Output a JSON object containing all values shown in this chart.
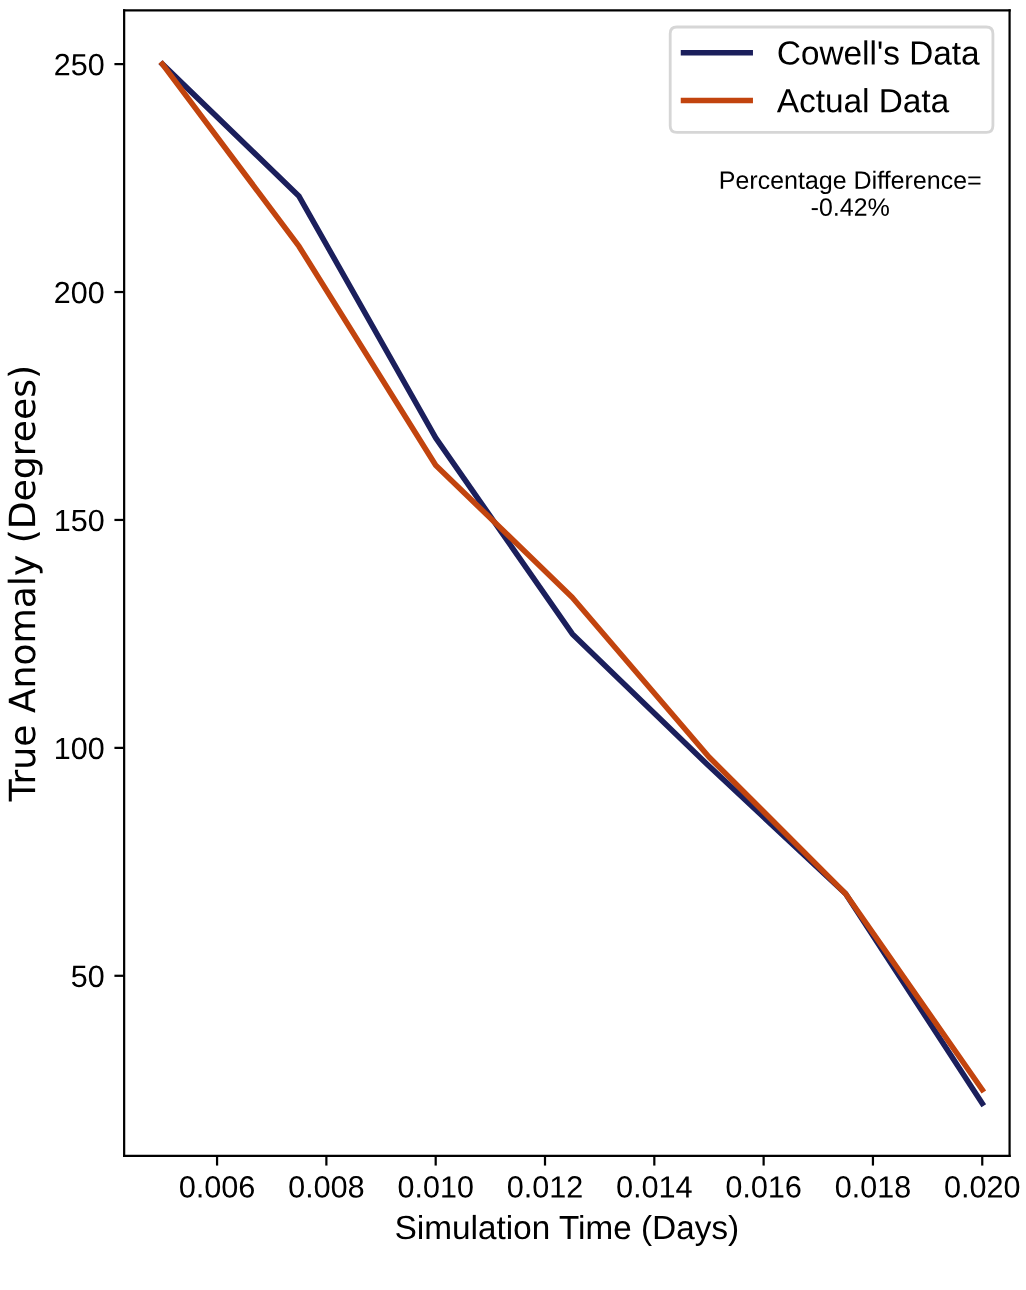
{
  "chart_data": {
    "type": "line",
    "xlabel": "Simulation Time (Days)",
    "ylabel": "True Anomaly (Degrees)",
    "x": [
      0.005,
      0.0075,
      0.01,
      0.0125,
      0.015,
      0.0175,
      0.02
    ],
    "series": [
      {
        "name": "Cowell's Data",
        "color": "#1b1f5c",
        "values": [
          250,
          221,
          168,
          125,
          96,
          68,
          22
        ]
      },
      {
        "name": "Actual Data",
        "color": "#c2440e",
        "values": [
          250,
          210,
          162,
          133,
          98,
          68,
          25
        ]
      }
    ],
    "xlim": [
      0.0043,
      0.0205
    ],
    "ylim": [
      10.5,
      261.8
    ],
    "xticks": [
      {
        "value": 0.006,
        "label": "0.006"
      },
      {
        "value": 0.008,
        "label": "0.008"
      },
      {
        "value": 0.01,
        "label": "0.010"
      },
      {
        "value": 0.012,
        "label": "0.012"
      },
      {
        "value": 0.014,
        "label": "0.014"
      },
      {
        "value": 0.016,
        "label": "0.016"
      },
      {
        "value": 0.018,
        "label": "0.018"
      },
      {
        "value": 0.02,
        "label": "0.020"
      }
    ],
    "yticks": [
      50,
      100,
      150,
      200,
      250
    ],
    "annotations": [
      "Percentage Difference=\n-0.42%"
    ],
    "legend": "top right",
    "grid": false
  }
}
